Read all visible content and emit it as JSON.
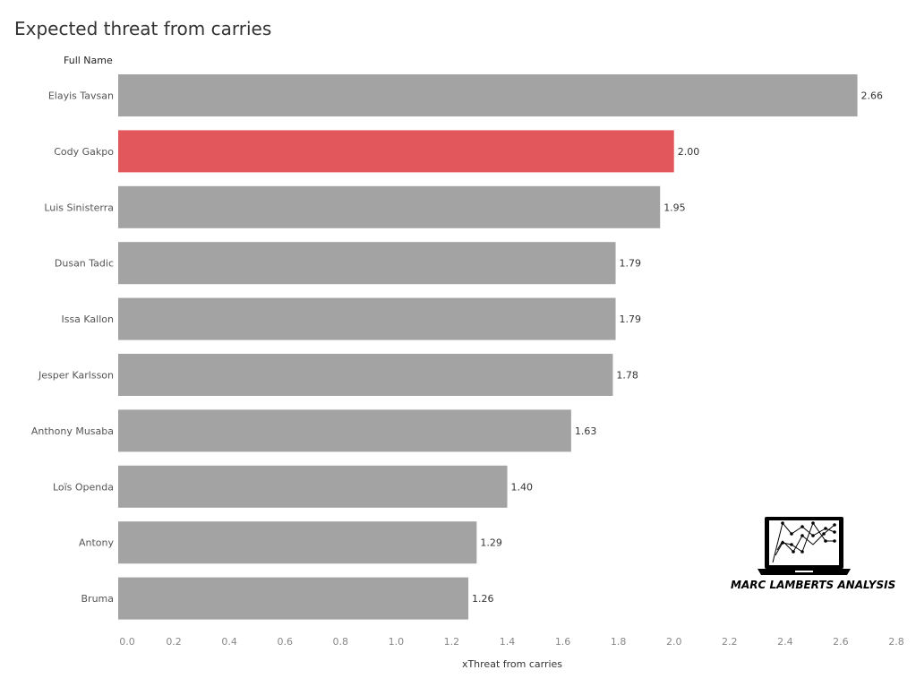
{
  "chart_data": {
    "type": "bar",
    "orientation": "horizontal",
    "title": "Expected threat from carries",
    "category_header": "Full Name",
    "xlabel": "xThreat from carries",
    "categories": [
      "Elayis Tavsan",
      "Cody Gakpo",
      "Luis Sinisterra",
      "Dusan Tadic",
      "Issa Kallon",
      "Jesper Karlsson",
      "Anthony Musaba",
      "Loïs Openda",
      "Antony",
      "Bruma"
    ],
    "values": [
      2.66,
      2.0,
      1.95,
      1.79,
      1.79,
      1.78,
      1.63,
      1.4,
      1.29,
      1.26
    ],
    "value_labels": [
      "2.66",
      "2.00",
      "1.95",
      "1.79",
      "1.79",
      "1.78",
      "1.63",
      "1.40",
      "1.29",
      "1.26"
    ],
    "highlight": "Cody Gakpo",
    "xlim": [
      0,
      2.8
    ],
    "xticks": [
      "0.0",
      "0.2",
      "0.4",
      "0.6",
      "0.8",
      "1.0",
      "1.2",
      "1.4",
      "1.6",
      "1.8",
      "2.0",
      "2.2",
      "2.4",
      "2.6",
      "2.8"
    ],
    "grid": false,
    "colors": {
      "default": "#a3a3a3",
      "highlight": "#e1575b"
    }
  },
  "logo": {
    "text": "MARC LAMBERTS ANALYSIS"
  }
}
